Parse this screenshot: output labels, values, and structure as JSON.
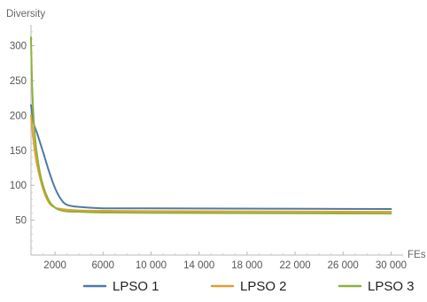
{
  "chart_data": {
    "type": "line",
    "ylabel": "Diversity",
    "xlabel": "FEs",
    "xlim": [
      0,
      31000
    ],
    "ylim": [
      0,
      330
    ],
    "xticks": [
      2000,
      6000,
      10000,
      14000,
      18000,
      22000,
      26000,
      30000
    ],
    "xtick_labels": [
      "2000",
      "6000",
      "10 000",
      "14 000",
      "18 000",
      "22 000",
      "26 000",
      "30 000"
    ],
    "yticks": [
      50,
      100,
      150,
      200,
      250,
      300
    ],
    "ytick_labels": [
      "50",
      "100",
      "150",
      "200",
      "250",
      "300"
    ],
    "grid": false,
    "legend_position": "bottom",
    "series": [
      {
        "name": "LPSO 1",
        "color": "#4e79a7",
        "points": [
          [
            0,
            215
          ],
          [
            200,
            190
          ],
          [
            500,
            175
          ],
          [
            1000,
            148
          ],
          [
            1500,
            120
          ],
          [
            2000,
            96
          ],
          [
            2500,
            80
          ],
          [
            3000,
            72
          ],
          [
            4000,
            69
          ],
          [
            6000,
            67
          ],
          [
            10000,
            67
          ],
          [
            20000,
            66.5
          ],
          [
            30000,
            66
          ]
        ]
      },
      {
        "name": "LPSO 2",
        "color": "#e0a030",
        "points": [
          [
            0,
            200
          ],
          [
            200,
            165
          ],
          [
            500,
            130
          ],
          [
            1000,
            95
          ],
          [
            1500,
            75
          ],
          [
            2000,
            68
          ],
          [
            2500,
            66
          ],
          [
            3000,
            65
          ],
          [
            4000,
            64
          ],
          [
            6000,
            63.5
          ],
          [
            10000,
            63
          ],
          [
            20000,
            62.5
          ],
          [
            30000,
            62
          ]
        ]
      },
      {
        "name": "LPSO 3",
        "color": "#8fb03a",
        "points": [
          [
            0,
            312
          ],
          [
            100,
            240
          ],
          [
            300,
            175
          ],
          [
            600,
            132
          ],
          [
            1000,
            100
          ],
          [
            1500,
            78
          ],
          [
            2000,
            68
          ],
          [
            2500,
            64
          ],
          [
            3000,
            62.5
          ],
          [
            4000,
            62
          ],
          [
            6000,
            61
          ],
          [
            10000,
            60.5
          ],
          [
            20000,
            60
          ],
          [
            30000,
            59.5
          ]
        ]
      }
    ]
  }
}
